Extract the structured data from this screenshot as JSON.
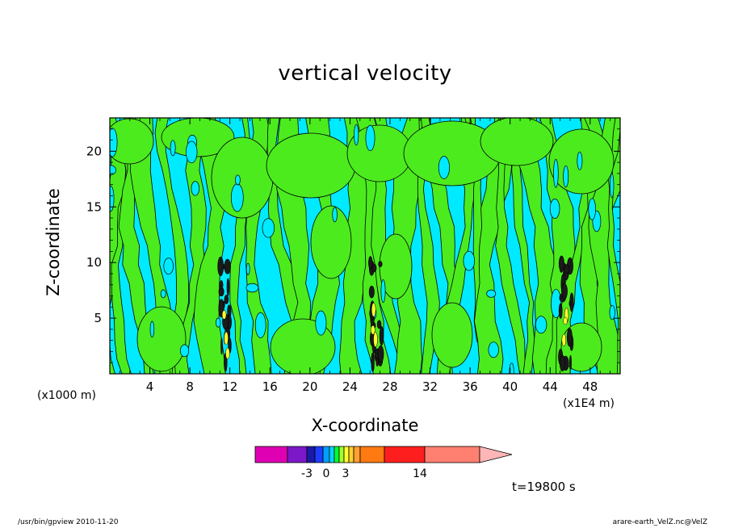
{
  "chart_data": {
    "type": "heatmap",
    "title": "vertical velocity",
    "xlabel": "X-coordinate",
    "ylabel": "Z-coordinate",
    "x_unit_left": "(x1000 m)",
    "x_unit_right": "(x1E4 m)",
    "xlim": [
      0,
      51
    ],
    "ylim": [
      0,
      23
    ],
    "x_ticks": [
      4,
      8,
      12,
      16,
      20,
      24,
      28,
      32,
      36,
      40,
      44,
      48
    ],
    "y_ticks": [
      5,
      10,
      15,
      20
    ],
    "time_label": "t=19800 s",
    "colorbar": {
      "labels": [
        {
          "text": "-3",
          "value": -3
        },
        {
          "text": "0",
          "value": 0
        },
        {
          "text": "3",
          "value": 3
        },
        {
          "text": "14",
          "value": 14
        }
      ],
      "colors": [
        "#e000b4",
        "#7d18c8",
        "#1a1aa8",
        "#1e3cff",
        "#00a0ff",
        "#00d7ff",
        "#00ff30",
        "#a0ff30",
        "#ffff30",
        "#ffd030",
        "#ffa030",
        "#ff7a10",
        "#ff1e1e",
        "#ff8070",
        "#ffb6b6"
      ],
      "extend": "max"
    },
    "colors": {
      "positive": "#4ceb1e",
      "negative": "#00eaff",
      "strong_core": "#1a1a1a",
      "strong_positive": "#fffa30"
    },
    "updraft_cores_x": [
      11.6,
      26.6,
      45.6
    ]
  },
  "footer": {
    "left": "/usr/bin/gpview   2010-11-20",
    "right": "arare-earth_VelZ.nc@VelZ"
  }
}
